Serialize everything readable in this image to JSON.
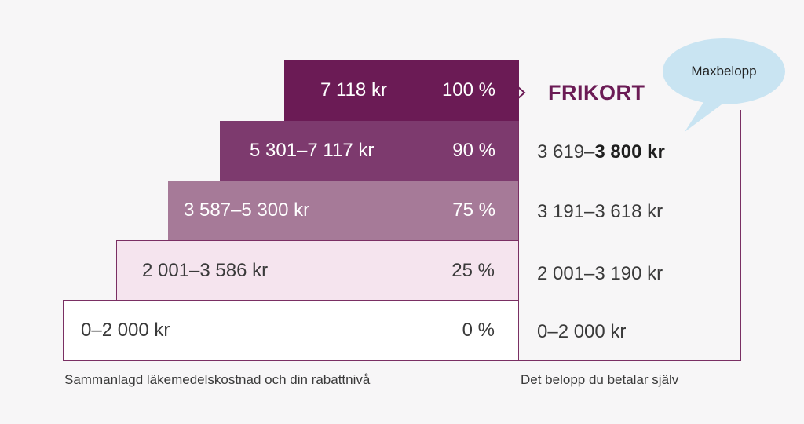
{
  "steps": [
    {
      "range": "0–2 000 kr",
      "percent": "0 %",
      "pay": "0–2 000 kr"
    },
    {
      "range": "2 001–3 586 kr",
      "percent": "25 %",
      "pay": "2 001–3 190 kr"
    },
    {
      "range": "3 587–5 300 kr",
      "percent": "75 %",
      "pay": "3 191–3 618 kr"
    },
    {
      "range": "5 301–7 117 kr",
      "percent": "90 %",
      "pay_prefix": "3 619–",
      "pay_bold": "3 800 kr"
    },
    {
      "range": "7 118 kr",
      "percent": "100 %"
    }
  ],
  "frikort": "FRIKORT",
  "bubble": "Maxbelopp",
  "captions": {
    "left": "Sammanlagd läkemedelskostnad och din rabattnivå",
    "right": "Det belopp du betalar själv"
  },
  "colors": {
    "step_0": "#ffffff",
    "step_1": "#f5e4ee",
    "step_2": "#a67a98",
    "step_3": "#7d3a6e",
    "step_4": "#6b1b55",
    "bubble": "#c9e4f2",
    "accent": "#6b1b55"
  }
}
